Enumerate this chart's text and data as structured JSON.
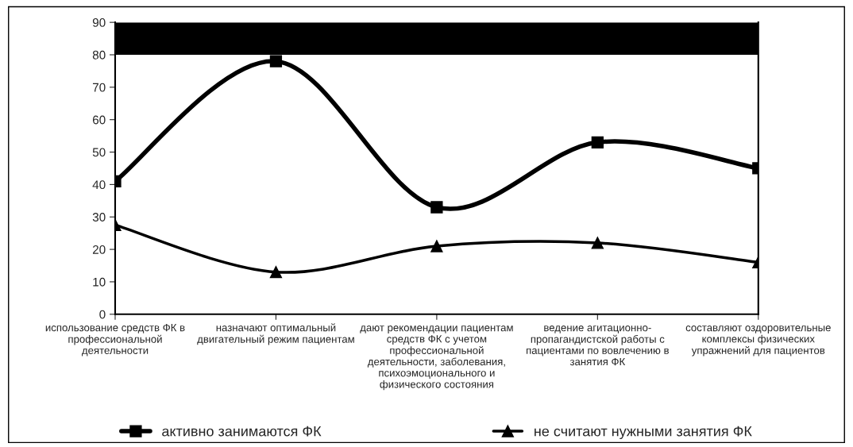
{
  "chart_data": {
    "type": "line",
    "categories": [
      "использование средств ФК в\nпрофессиональной\nдеятельности",
      "назначают оптимальный\nдвигательный режим пациентам",
      "дают рекомендации пациентам\nсредств ФК с учетом\nпрофессиональной\nдеятельности, заболевания,\nпсихоэмоционального и\nфизического состояния",
      "ведение агитационно-\nпропагандистской работы с\nпациентами по вовлечению в\nзанятия ФК",
      "составляют оздоровительные\nкомплексы физических\nупражнений для пациентов"
    ],
    "series": [
      {
        "name": "активно занимаются ФК",
        "color": "#000000",
        "marker": "square",
        "values": [
          41,
          78,
          33,
          53,
          45
        ]
      },
      {
        "name": "не считают нужными занятия ФК",
        "color": "#000000",
        "marker": "triangle",
        "values": [
          27.5,
          13,
          21,
          22,
          16
        ]
      }
    ],
    "ylim": [
      0,
      90
    ],
    "yticks": [
      0,
      10,
      20,
      30,
      40,
      50,
      60,
      70,
      80,
      90
    ],
    "bands": [
      {
        "axis": "y",
        "from": 80,
        "to": 90,
        "color": "#000000"
      }
    ],
    "grid": false,
    "legend": "bottom",
    "line_style": "solid"
  }
}
